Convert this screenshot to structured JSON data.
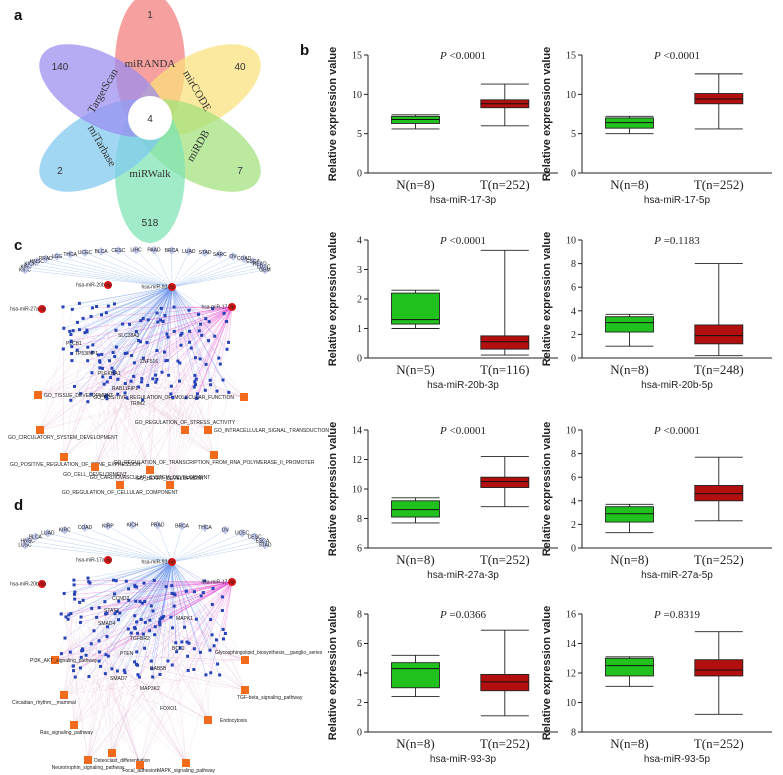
{
  "panel_letters": {
    "a": "a",
    "b": "b",
    "c": "c",
    "d": "d"
  },
  "venn": {
    "center_count": "4",
    "petals": [
      {
        "name": "miRANDA",
        "count": "1",
        "color": "#f47c7c"
      },
      {
        "name": "mirCODE",
        "count": "40",
        "color": "#f9e07a"
      },
      {
        "name": "miRDB",
        "count": "7",
        "color": "#9fe07a"
      },
      {
        "name": "miRWalk",
        "count": "518",
        "color": "#7de3b4"
      },
      {
        "name": "miTarbase",
        "count": "2",
        "color": "#7ec8f0"
      },
      {
        "name": "TargetScan",
        "count": "140",
        "color": "#9a8cf0"
      }
    ]
  },
  "networks": {
    "c": {
      "mirnas": [
        "hsa-miR-20b-5p",
        "hsa-miR-93-5p",
        "hsa-miR-27a-5p",
        "hsa-miR-17-3p"
      ],
      "cancers": [
        "KIRC",
        "KIRP",
        "KICH",
        "HNSC",
        "PRAD",
        "LGG",
        "THCA",
        "UCEC",
        "BLCA",
        "CESC",
        "LIHC",
        "PAAD",
        "BRCA",
        "LUAD",
        "STAD",
        "SARC",
        "OV",
        "COAD",
        "ESCA",
        "READ",
        "LUSC",
        "GBM"
      ],
      "go_terms": [
        "GO_TISSUE_DEVELOPMENT",
        "GO_CIRCULATORY_SYSTEM_DEVELOPMENT",
        "GO_POSITIVE_REGULATION_OF_GENE_EXPRESSION",
        "GO_CELL_DEVELOPMENT",
        "GO_REGULATION_OF_CELLULAR_COMPONENT",
        "GO_POSITIVE_REGULATION_OF_MOLECULAR_FUNCTION",
        "GO_INTRACELLULAR_SIGNAL_TRANSDUCTION",
        "GO_REGULATION_OF_TRANSCRIPTION_FROM_RNA_POLYMERASE_II_PROMOTER",
        "GO_CARDIOVASCULAR_SYSTEM_DEVELOPMENT",
        "GO_HEART_DEVELOPMENT",
        "GO_REGULATION_OF_STRESS_ACTIVITY"
      ],
      "genes": [
        "TP53INP1",
        "PLCB1",
        "PLEKHA1",
        "RAB11FIP1",
        "TRIM2",
        "SLC38A2",
        "ZNF516"
      ]
    },
    "d": {
      "mirnas": [
        "hsa-miR-17a-5p",
        "hsa-miR-93-5p",
        "hsa-miR-20b-5p",
        "hsa-miR-17-3p"
      ],
      "cancers": [
        "LUSC",
        "HNSC",
        "BLCA",
        "LUAD",
        "KIRC",
        "COAD",
        "KIRP",
        "KICH",
        "PRAD",
        "BRCA",
        "THCA",
        "OV",
        "UCEC",
        "CESC",
        "ESCA",
        "STAD"
      ],
      "pathways": [
        "PI3K_AKT_signaling_pathway",
        "Circadian_rhythm__mammal",
        "Ras_signaling_pathway",
        "Neurotrophin_signaling_pathway",
        "Osteoclast_differentiation",
        "Focal_adhesion",
        "MAPK_signaling_pathway",
        "Endocytosis",
        "TGF-beta_signaling_pathway",
        "Glycosphingolipid_biosynthesis__ganglio_series"
      ],
      "genes": [
        "CCND2",
        "STAT3",
        "SMAD4",
        "TGFBR2",
        "PTEN",
        "RAB5B",
        "MAP3K2",
        "FOXO1",
        "MAPK1",
        "BCL2",
        "SMAD7"
      ]
    }
  },
  "chart_data": [
    {
      "type": "box",
      "gene": "hsa-miR-17-3p",
      "p_prefix": "P",
      "p_text": " <0.0001",
      "ylabel": "Relative expression value",
      "ylim": [
        0,
        15
      ],
      "yticks": [
        0,
        5,
        10,
        15
      ],
      "groups": [
        {
          "label": "N(n=8)",
          "min": 5.6,
          "q1": 6.3,
          "median": 6.8,
          "q3": 7.2,
          "max": 7.4,
          "color": "#22c21e"
        },
        {
          "label": "T(n=252)",
          "min": 6.0,
          "q1": 8.3,
          "median": 8.8,
          "q3": 9.3,
          "max": 11.3,
          "color": "#b30f0f"
        }
      ]
    },
    {
      "type": "box",
      "gene": "hsa-miR-17-5p",
      "p_prefix": "P",
      "p_text": " <0.0001",
      "ylabel": "Relative expression value",
      "ylim": [
        0,
        15
      ],
      "yticks": [
        0,
        5,
        10,
        15
      ],
      "groups": [
        {
          "label": "N(n=8)",
          "min": 5.0,
          "q1": 5.7,
          "median": 6.4,
          "q3": 7.0,
          "max": 7.2,
          "color": "#22c21e"
        },
        {
          "label": "T(n=252)",
          "min": 5.6,
          "q1": 8.8,
          "median": 9.4,
          "q3": 10.1,
          "max": 12.6,
          "color": "#b30f0f"
        }
      ]
    },
    {
      "type": "box",
      "gene": "hsa-miR-20b-3p",
      "p_prefix": "P",
      "p_text": " <0.0001",
      "ylabel": "Relative expression value",
      "ylim": [
        0,
        4
      ],
      "yticks": [
        0,
        1,
        2,
        3,
        4
      ],
      "groups": [
        {
          "label": "N(n=5)",
          "min": 1.0,
          "q1": 1.15,
          "median": 1.3,
          "q3": 2.2,
          "max": 2.3,
          "color": "#22c21e"
        },
        {
          "label": "T(n=116)",
          "min": 0.1,
          "q1": 0.3,
          "median": 0.55,
          "q3": 0.75,
          "max": 3.65,
          "color": "#b30f0f"
        }
      ]
    },
    {
      "type": "box",
      "gene": "hsa-miR-20b-5p",
      "p_prefix": "P",
      "p_text": " =0.1183",
      "ylabel": "Relative expression value",
      "ylim": [
        0,
        10
      ],
      "yticks": [
        0,
        2,
        4,
        6,
        8,
        10
      ],
      "groups": [
        {
          "label": "N(n=8)",
          "min": 1.0,
          "q1": 2.2,
          "median": 3.0,
          "q3": 3.5,
          "max": 3.7,
          "color": "#22c21e"
        },
        {
          "label": "T(n=248)",
          "min": 0.2,
          "q1": 1.2,
          "median": 1.9,
          "q3": 2.8,
          "max": 8.0,
          "color": "#b30f0f"
        }
      ]
    },
    {
      "type": "box",
      "gene": "hsa-miR-27a-3p",
      "p_prefix": "P",
      "p_text": " <0.0001",
      "ylabel": "Relative expression value",
      "ylim": [
        6,
        14
      ],
      "yticks": [
        6,
        8,
        10,
        12,
        14
      ],
      "groups": [
        {
          "label": "N(n=8)",
          "min": 7.7,
          "q1": 8.1,
          "median": 8.6,
          "q3": 9.2,
          "max": 9.4,
          "color": "#22c21e"
        },
        {
          "label": "T(n=252)",
          "min": 8.8,
          "q1": 10.1,
          "median": 10.5,
          "q3": 10.8,
          "max": 12.2,
          "color": "#b30f0f"
        }
      ]
    },
    {
      "type": "box",
      "gene": "hsa-miR-27a-5p",
      "p_prefix": "P",
      "p_text": " <0.0001",
      "ylabel": "Relative expression value",
      "ylim": [
        0,
        10
      ],
      "yticks": [
        0,
        2,
        4,
        6,
        8,
        10
      ],
      "groups": [
        {
          "label": "N(n=8)",
          "min": 1.3,
          "q1": 2.2,
          "median": 2.9,
          "q3": 3.5,
          "max": 3.7,
          "color": "#22c21e"
        },
        {
          "label": "T(n=252)",
          "min": 2.3,
          "q1": 4.0,
          "median": 4.6,
          "q3": 5.3,
          "max": 7.7,
          "color": "#b30f0f"
        }
      ]
    },
    {
      "type": "box",
      "gene": "hsa-miR-93-3p",
      "p_prefix": "P",
      "p_text": " =0.0366",
      "ylabel": "Relative expression value",
      "ylim": [
        0,
        8
      ],
      "yticks": [
        0,
        2,
        4,
        6,
        8
      ],
      "groups": [
        {
          "label": "N(n=8)",
          "min": 2.4,
          "q1": 3.0,
          "median": 4.3,
          "q3": 4.7,
          "max": 5.2,
          "color": "#22c21e"
        },
        {
          "label": "T(n=252)",
          "min": 1.1,
          "q1": 2.8,
          "median": 3.4,
          "q3": 3.9,
          "max": 6.9,
          "color": "#b30f0f"
        }
      ]
    },
    {
      "type": "box",
      "gene": "hsa-miR-93-5p",
      "p_prefix": "P",
      "p_text": " =0.8319",
      "ylabel": "Relative expression value",
      "ylim": [
        8,
        16
      ],
      "yticks": [
        8,
        10,
        12,
        14,
        16
      ],
      "groups": [
        {
          "label": "N(n=8)",
          "min": 11.1,
          "q1": 11.8,
          "median": 12.5,
          "q3": 13.0,
          "max": 13.1,
          "color": "#22c21e"
        },
        {
          "label": "T(n=252)",
          "min": 9.2,
          "q1": 11.8,
          "median": 12.2,
          "q3": 12.9,
          "max": 14.8,
          "color": "#b30f0f"
        }
      ]
    }
  ]
}
